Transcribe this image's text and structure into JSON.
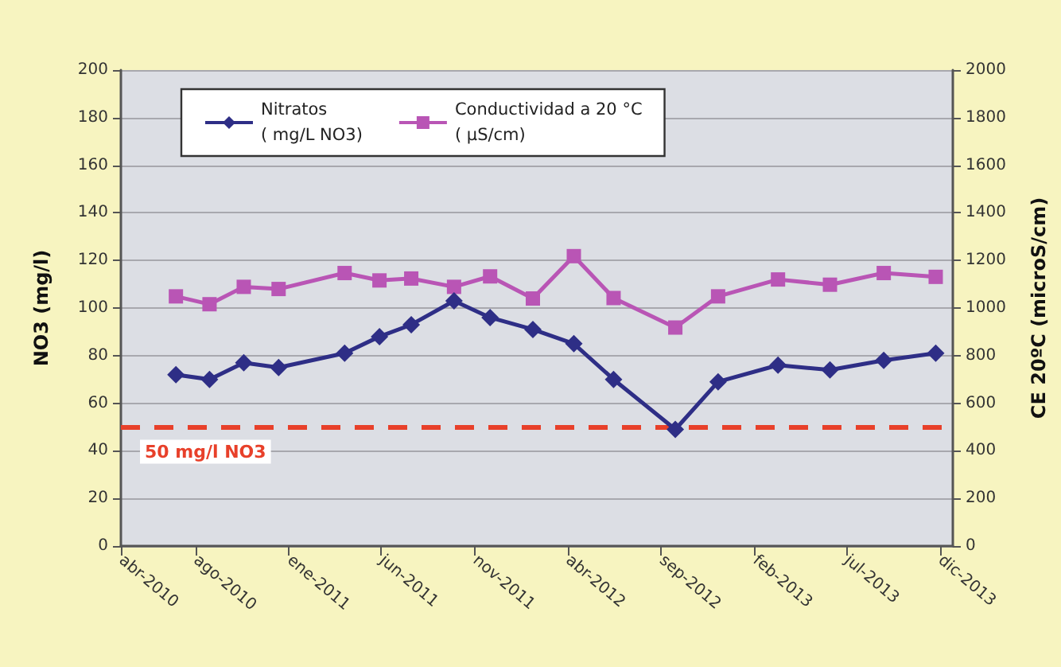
{
  "chart_data": {
    "type": "line",
    "ylabel": "NO3 (mg/l)",
    "y2label": "CE 20ºC (microS/cm)",
    "x": [
      "2010-06-30",
      "2010-08-24",
      "2010-10-19",
      "2010-12-15",
      "2011-04-02",
      "2011-05-29",
      "2011-07-20",
      "2011-09-28",
      "2011-11-26",
      "2012-02-04",
      "2012-04-11",
      "2012-06-15",
      "2012-09-24",
      "2012-12-03",
      "2013-03-11",
      "2013-06-04",
      "2013-08-31",
      "2013-11-24"
    ],
    "series": [
      {
        "name": "Nitratos\n( mg/L NO3)",
        "color": "#2e2e86",
        "marker": "diamond",
        "values": [
          72,
          70,
          77,
          75,
          81,
          88,
          93,
          103,
          96,
          91,
          85,
          70,
          49,
          69,
          76,
          74,
          78,
          81
        ]
      },
      {
        "name": "Conductividad a 20 °C\n( µS/cm)",
        "color": "#b955b5",
        "marker": "square",
        "axis": "y2",
        "values": [
          1049,
          1016,
          1089,
          1080,
          1147,
          1116,
          1124,
          1089,
          1133,
          1040,
          1218,
          1042,
          918,
          1049,
          1120,
          1098,
          1147,
          1131
        ]
      }
    ],
    "xlim": [
      "2010-04-01",
      "2013-12-22"
    ],
    "xticks": [
      {
        "value": "2010-04-01",
        "label": "abr-2010"
      },
      {
        "value": "2010-08-01",
        "label": "ago-2010"
      },
      {
        "value": "2011-01-01",
        "label": "ene-2011"
      },
      {
        "value": "2011-06-01",
        "label": "jun-2011"
      },
      {
        "value": "2011-11-01",
        "label": "nov-2011"
      },
      {
        "value": "2012-04-01",
        "label": "abr-2012"
      },
      {
        "value": "2012-09-01",
        "label": "sep-2012"
      },
      {
        "value": "2013-02-01",
        "label": "feb-2013"
      },
      {
        "value": "2013-07-01",
        "label": "jul-2013"
      },
      {
        "value": "2013-12-01",
        "label": "dic-2013"
      }
    ],
    "ylim": [
      0,
      200
    ],
    "yticks": [
      0,
      20,
      40,
      60,
      80,
      100,
      120,
      140,
      160,
      180,
      200
    ],
    "y2lim": [
      0,
      2000
    ],
    "y2ticks": [
      0,
      200,
      400,
      600,
      800,
      1000,
      1200,
      1400,
      1600,
      1800,
      2000
    ],
    "ref_lines": [
      {
        "axis": "y",
        "value": 50,
        "label": "50 mg/l NO3",
        "color": "#e8402a",
        "line_style": "dashed"
      }
    ],
    "grid": "y",
    "legend": "top left",
    "line_style": "solid"
  }
}
